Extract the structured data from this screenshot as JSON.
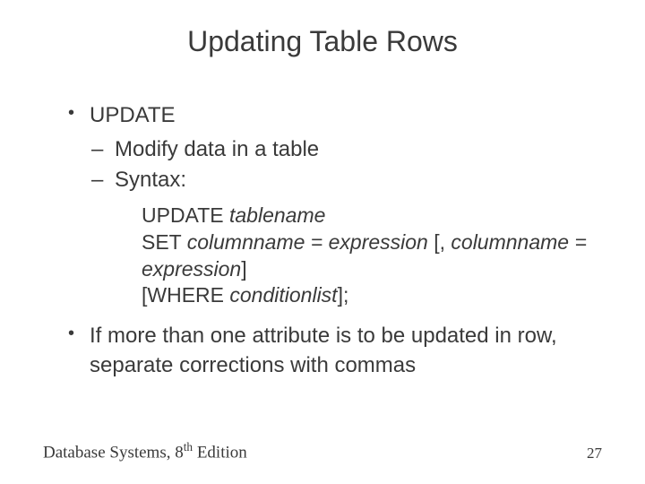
{
  "title": "Updating Table Rows",
  "bullets": {
    "b1": "UPDATE",
    "b1_sub1": "Modify data in a table",
    "b1_sub2": "Syntax:",
    "b2": "If more than one attribute is to be updated in row, separate corrections with commas"
  },
  "code": {
    "l1_a": "UPDATE ",
    "l1_b": "tablename",
    "l2_a": "SET ",
    "l2_b": "columnname = expression",
    "l2_c": " [, ",
    "l2_d": "columnname = expression",
    "l2_e": "]",
    "l3_a": "[WHERE ",
    "l3_b": "conditionlist",
    "l3_c": "];"
  },
  "footer": {
    "left_a": "Database Systems, 8",
    "left_sup": "th",
    "left_b": " Edition",
    "page": "27"
  },
  "colors": {
    "text": "#3a3a3a",
    "background": "#ffffff"
  }
}
